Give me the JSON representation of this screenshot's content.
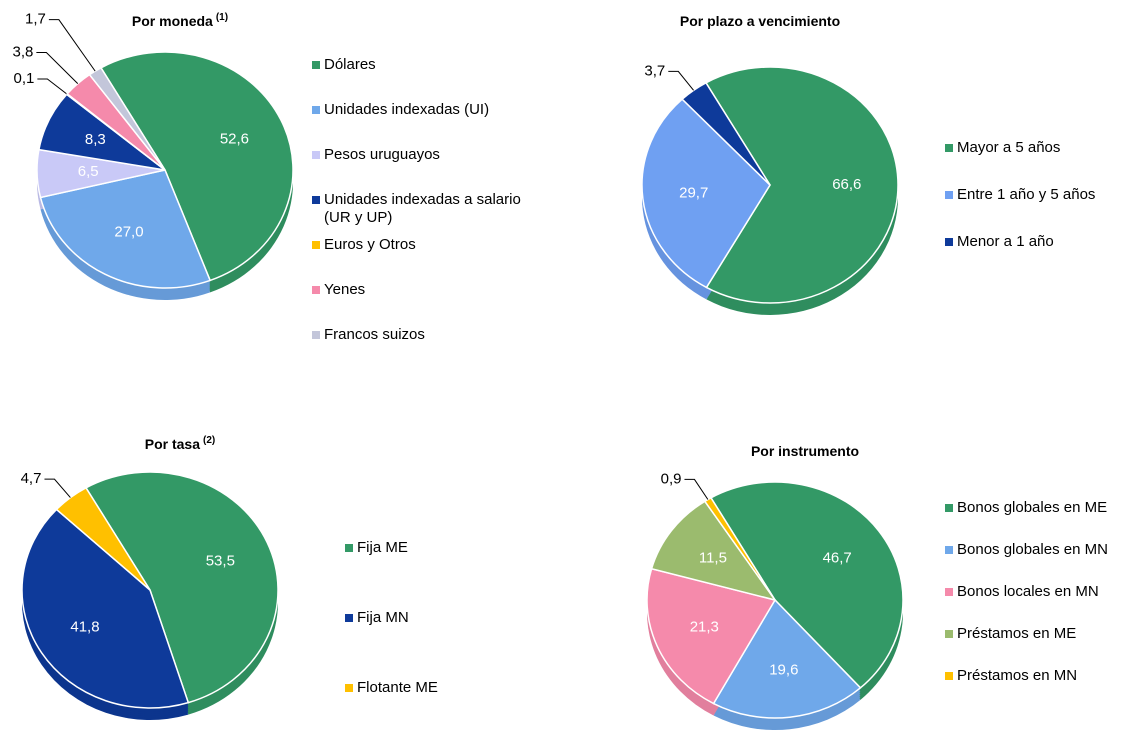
{
  "chart_data": [
    {
      "type": "pie",
      "title": "Por moneda",
      "title_superscript": "(1)",
      "categories": [
        "Dólares",
        "Unidades indexadas (UI)",
        "Pesos uruguayos",
        "Unidades indexadas a salario (UR y UP)",
        "Euros y Otros",
        "Yenes",
        "Francos suizos"
      ],
      "values": [
        52.6,
        27.0,
        6.5,
        8.3,
        0.1,
        3.8,
        1.7
      ],
      "value_labels": [
        "52,6",
        "27,0",
        "6,5",
        "8,3",
        "0,1",
        "3,8",
        "1,7"
      ],
      "colors": [
        "#339966",
        "#6fa8ea",
        "#c9c9f7",
        "#0e3a9a",
        "#ffc000",
        "#f58aab",
        "#c3c6da"
      ]
    },
    {
      "type": "pie",
      "title": "Por plazo a vencimiento",
      "categories": [
        "Mayor a 5 años",
        "Entre 1 año y 5 años",
        "Menor a 1 año"
      ],
      "values": [
        66.6,
        29.7,
        3.7
      ],
      "value_labels": [
        "66,6",
        "29,7",
        "3,7"
      ],
      "colors": [
        "#339966",
        "#6fa0f2",
        "#0e3a9a"
      ]
    },
    {
      "type": "pie",
      "title": "Por tasa",
      "title_superscript": "(2)",
      "categories": [
        "Fija ME",
        "Fija MN",
        "Flotante ME"
      ],
      "values": [
        53.5,
        41.8,
        4.7
      ],
      "value_labels": [
        "53,5",
        "41,8",
        "4,7"
      ],
      "colors": [
        "#339966",
        "#0e3a9a",
        "#ffc000"
      ]
    },
    {
      "type": "pie",
      "title": "Por instrumento",
      "categories": [
        "Bonos globales en ME",
        "Bonos globales en MN",
        "Bonos locales en MN",
        "Préstamos en ME",
        "Préstamos en MN"
      ],
      "values": [
        46.7,
        19.6,
        21.3,
        11.5,
        0.9
      ],
      "value_labels": [
        "46,7",
        "19,6",
        "21,3",
        "11,5",
        "0,9"
      ],
      "colors": [
        "#339966",
        "#6fa8ea",
        "#f58aab",
        "#9bbb6e",
        "#ffc000"
      ]
    }
  ]
}
